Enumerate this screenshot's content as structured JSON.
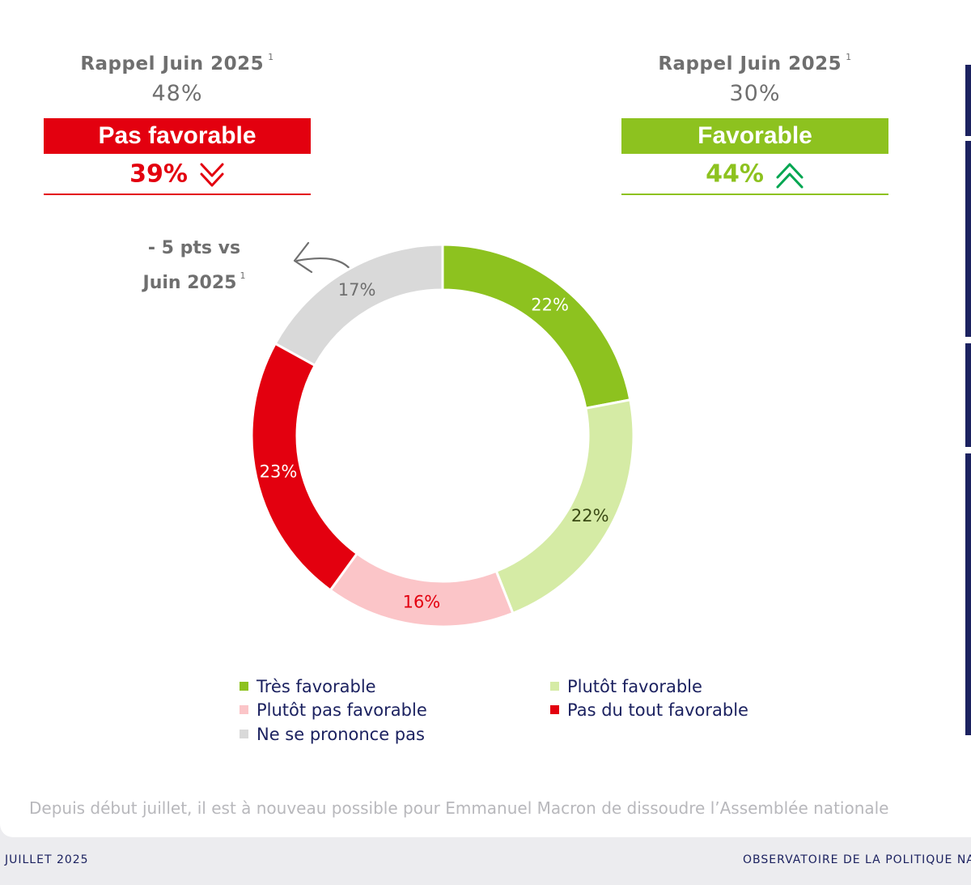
{
  "left_panel": {
    "recall_label": "Rappel Juin 2025",
    "recall_note": "1",
    "recall_value": "48%",
    "banner": "Pas favorable",
    "score": "39%",
    "trend_icon": "double-chevron-down-icon",
    "color": "#e3000f"
  },
  "right_panel": {
    "recall_label": "Rappel Juin 2025",
    "recall_note": "1",
    "recall_value": "30%",
    "banner": "Favorable",
    "score": "44%",
    "trend_icon": "double-chevron-up-icon",
    "color": "#8dc21f",
    "arrow_color": "#00a651"
  },
  "annotation": {
    "line1": "- 5 pts vs",
    "line2": "Juin 2025",
    "note": "1",
    "icon": "curved-arrow-left-icon"
  },
  "chart_data": {
    "type": "pie",
    "donut": true,
    "start": "top, clockwise",
    "slices": [
      {
        "name": "Très favorable",
        "value": 22,
        "label": "22%",
        "color": "#8dc21f",
        "label_color": "#ffffff"
      },
      {
        "name": "Plutôt favorable",
        "value": 22,
        "label": "22%",
        "color": "#d5eba5",
        "label_color": "#3a4a14"
      },
      {
        "name": "Plutôt pas favorable",
        "value": 16,
        "label": "16%",
        "color": "#fbc5c8",
        "label_color": "#e3000f"
      },
      {
        "name": "Pas du tout favorable",
        "value": 23,
        "label": "23%",
        "color": "#e3000f",
        "label_color": "#ffffff"
      },
      {
        "name": "Ne se prononce pas",
        "value": 17,
        "label": "17%",
        "color": "#d9d9d9",
        "label_color": "#6f6f6f"
      }
    ],
    "legend": [
      {
        "label": "Très favorable",
        "color": "#8dc21f"
      },
      {
        "label": "Plutôt favorable",
        "color": "#d5eba5"
      },
      {
        "label": "Plutôt pas favorable",
        "color": "#fbc5c8"
      },
      {
        "label": "Pas du tout favorable",
        "color": "#e3000f"
      },
      {
        "label": "Ne se prononce pas",
        "color": "#d9d9d9"
      }
    ]
  },
  "note": "Depuis début juillet, il est à nouveau possible pour Emmanuel Macron de dissoudre l’Assemblée nationale",
  "footer": {
    "left": "JUILLET 2025",
    "right": "OBSERVATOIRE DE LA POLITIQUE NA"
  }
}
